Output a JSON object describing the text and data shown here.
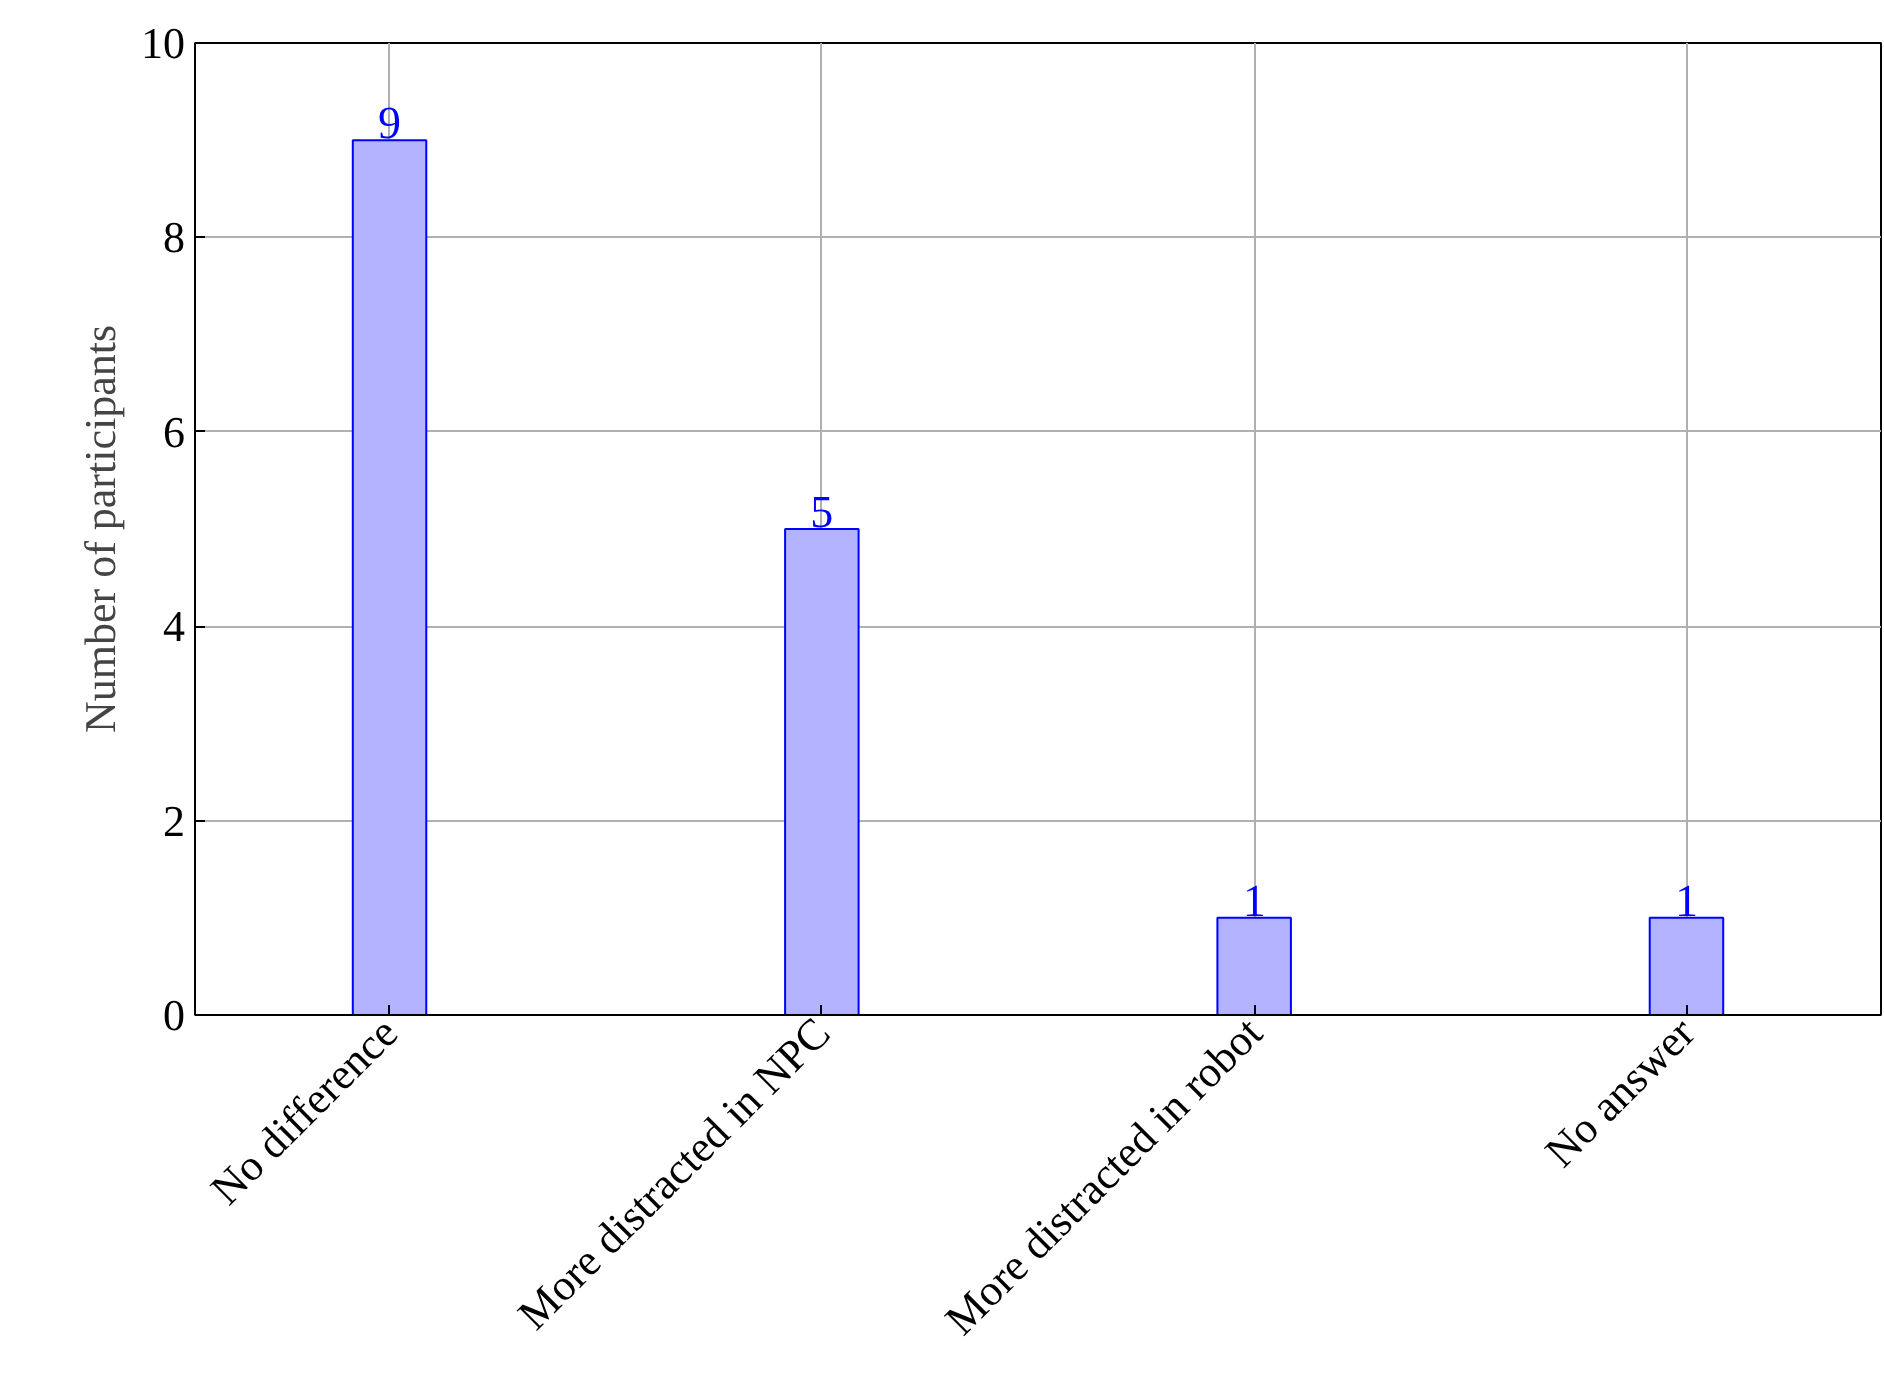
{
  "chart_data": {
    "type": "bar",
    "ylabel": "Number of participants",
    "categories": [
      "No difference",
      "More distracted in NPC",
      "More distracted in robot",
      "No answer"
    ],
    "values": [
      9,
      5,
      1,
      1
    ],
    "color": "#b3b3ff",
    "ylim": [
      0,
      10
    ],
    "yticks": [
      0,
      2,
      4,
      6,
      8,
      10
    ],
    "grid": true,
    "data_labels": true
  }
}
